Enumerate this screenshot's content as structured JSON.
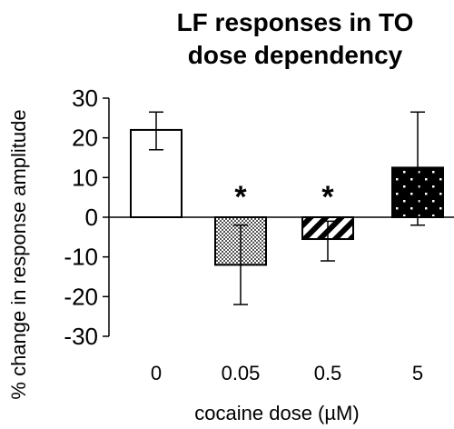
{
  "chart_data": {
    "type": "bar",
    "title": "LF responses in TO dose dependency",
    "title_lines": [
      "LF responses in TO",
      "dose dependency"
    ],
    "xlabel": "cocaine dose (µM)",
    "ylabel": "% change in response amplitude",
    "categories": [
      "0",
      "0.05",
      "0.5",
      "5"
    ],
    "values": [
      22,
      -12,
      -5.5,
      12.5
    ],
    "error_upper": [
      26.5,
      -2,
      -1,
      26.5
    ],
    "error_lower": [
      17,
      -22,
      -11,
      -2
    ],
    "significance": [
      "",
      "*",
      "*",
      ""
    ],
    "patterns": [
      "white",
      "checker",
      "diagonal-stripes",
      "black-dots"
    ],
    "ylim": [
      -30,
      30
    ],
    "yticks": [
      30,
      20,
      10,
      0,
      -10,
      -20,
      -30
    ],
    "grid": false,
    "legend": "none"
  }
}
